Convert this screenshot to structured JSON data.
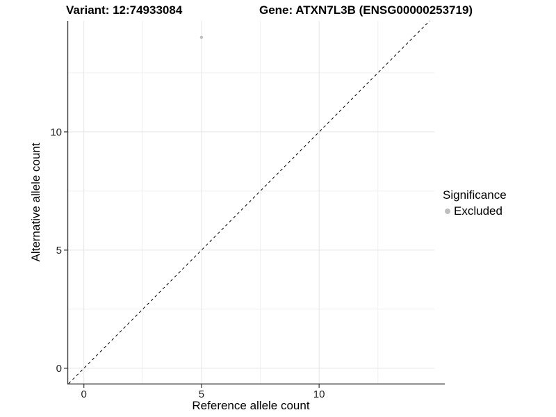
{
  "header": {
    "variant_title": "Variant: 12:74933084",
    "gene_title": "Gene: ATXN7L3B (ENSG00000253719)"
  },
  "chart_data": {
    "type": "scatter",
    "title": "Variant: 12:74933084   Gene: ATXN7L3B (ENSG00000253719)",
    "xlabel": "Reference allele count",
    "ylabel": "Alternative allele count",
    "xlim": [
      -0.7,
      14.9
    ],
    "ylim": [
      -0.65,
      14.7
    ],
    "xticks": [
      0,
      5,
      10
    ],
    "yticks": [
      0,
      5,
      10
    ],
    "x_minor_ticks": [
      2.5,
      7.5,
      12.5
    ],
    "y_minor_ticks": [
      2.5,
      7.5,
      12.5
    ],
    "grid": true,
    "identity_line": {
      "style": "dashed",
      "color": "#000000",
      "dash": [
        4,
        4
      ]
    },
    "series": [
      {
        "name": "Excluded",
        "color": "#bfbfbf",
        "point_radius": 2.2,
        "points": [
          {
            "x": 5,
            "y": 14
          }
        ]
      }
    ],
    "legend": {
      "title": "Significance",
      "position": "right",
      "entries": [
        {
          "label": "Excluded",
          "color": "#bfbfbf"
        }
      ]
    },
    "style": {
      "background": "#ffffff",
      "grid_major_color": "#e4e4e4",
      "grid_minor_color": "#f1f1f1",
      "axis_line_color": "#3a3a3a",
      "tick_color": "#333333",
      "tick_label_color": "#1f1f1f"
    }
  }
}
